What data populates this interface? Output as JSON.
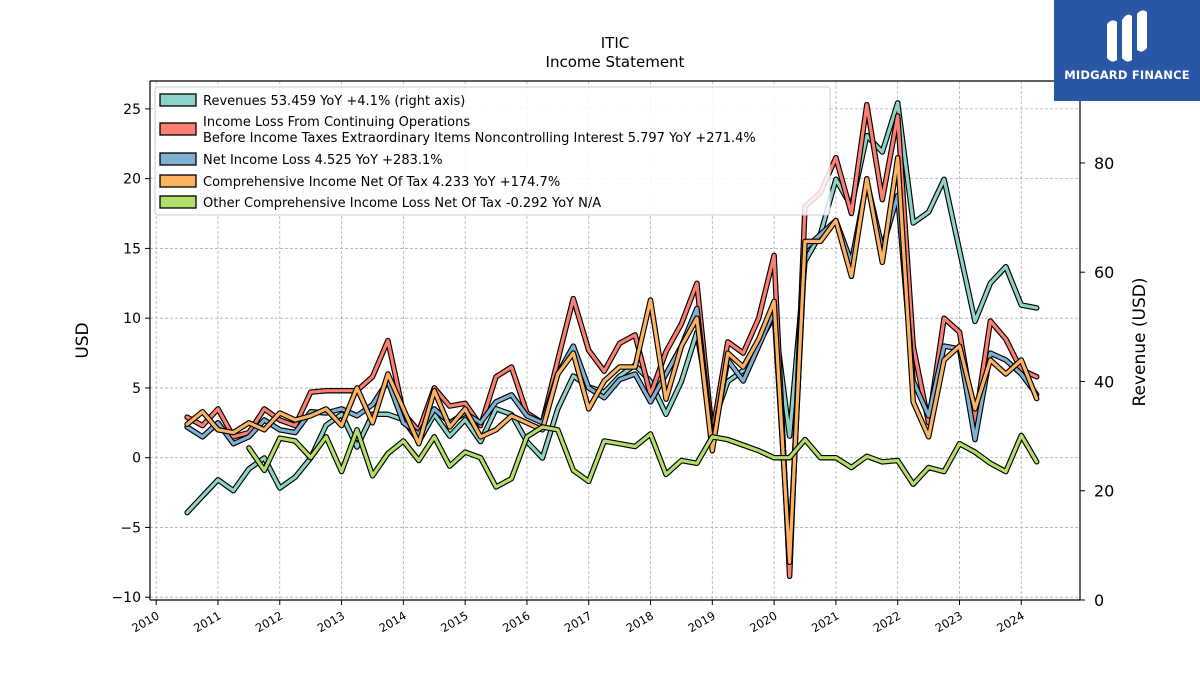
{
  "title": "ITIC",
  "subtitle": "Income Statement",
  "logo_text": "MIDGARD FINANCE",
  "chart_data": {
    "type": "line",
    "ylabel": "USD",
    "y2label": "Revenue (USD)",
    "xlim": [
      2009.9,
      2024.95
    ],
    "ylim": [
      -10.2,
      27
    ],
    "y2lim": [
      0,
      95
    ],
    "yticks": [
      -10,
      -5,
      0,
      5,
      10,
      15,
      20,
      25
    ],
    "y2ticks": [
      0,
      20,
      40,
      60,
      80
    ],
    "xticks": [
      2010,
      2011,
      2012,
      2013,
      2014,
      2015,
      2016,
      2017,
      2018,
      2019,
      2020,
      2021,
      2022,
      2023,
      2024
    ],
    "xtick_labels": [
      "2010",
      "2011",
      "2012",
      "2013",
      "2014",
      "2015",
      "2016",
      "2017",
      "2018",
      "2019",
      "2020",
      "2021",
      "2022",
      "2023",
      "2024"
    ],
    "grid": true,
    "legend_position": "top-left",
    "x": [
      2010.5,
      2010.75,
      2011.0,
      2011.25,
      2011.5,
      2011.75,
      2012.0,
      2012.25,
      2012.5,
      2012.75,
      2013.0,
      2013.25,
      2013.5,
      2013.75,
      2014.0,
      2014.25,
      2014.5,
      2014.75,
      2015.0,
      2015.25,
      2015.5,
      2015.75,
      2016.0,
      2016.25,
      2016.5,
      2016.75,
      2017.0,
      2017.25,
      2017.5,
      2017.75,
      2018.0,
      2018.25,
      2018.5,
      2018.75,
      2019.0,
      2019.25,
      2019.5,
      2019.75,
      2020.0,
      2020.25,
      2020.5,
      2020.75,
      2021.0,
      2021.25,
      2021.5,
      2021.75,
      2022.0,
      2022.25,
      2022.5,
      2022.75,
      2023.0,
      2023.25,
      2023.5,
      2023.75,
      2024.0,
      2024.25
    ],
    "series": [
      {
        "name": "Revenues",
        "legend": "Revenues  53.459 YoY +4.1% (right axis)",
        "color": "#8dd3c7",
        "axis": "right",
        "values": [
          16,
          19,
          22,
          20,
          24,
          26,
          20.5,
          22.5,
          26,
          32,
          34,
          28,
          34,
          34,
          33,
          29,
          34,
          30,
          33,
          29,
          35,
          34,
          29,
          26,
          35,
          41,
          39,
          38,
          41,
          43,
          40,
          34,
          40,
          49,
          32,
          40,
          42,
          47,
          52,
          30,
          62,
          67,
          77,
          72,
          85,
          82,
          91,
          69,
          71,
          77,
          64,
          51,
          58,
          61,
          54,
          53.459
        ]
      },
      {
        "name": "Income Loss From Continuing Operations Before Income Taxes Extraordinary Items Noncontrolling Interest",
        "legend_lines": [
          "Income Loss From Continuing Operations",
          "Before Income Taxes Extraordinary Items Noncontrolling Interest  5.797 YoY +271.4%"
        ],
        "color": "#fb8072",
        "axis": "left",
        "values": [
          2.9,
          2.3,
          3.5,
          1.5,
          1.8,
          3.5,
          2.7,
          2.3,
          4.7,
          4.8,
          4.8,
          4.8,
          5.8,
          8.4,
          3.2,
          1.9,
          5.0,
          3.7,
          3.9,
          2.3,
          5.8,
          6.5,
          3.2,
          2.5,
          7.0,
          11.4,
          7.7,
          6.2,
          8.2,
          8.8,
          4.5,
          7.6,
          9.6,
          12.5,
          1.7,
          8.3,
          7.5,
          10.0,
          14.5,
          -8.5,
          18.0,
          19.0,
          21.5,
          17.5,
          25.3,
          18.5,
          24.5,
          8.0,
          2.5,
          10.0,
          9.0,
          2.5,
          9.8,
          8.5,
          6.3,
          5.797
        ]
      },
      {
        "name": "Net Income Loss",
        "legend": "Net Income Loss  4.525 YoY +283.1%",
        "color": "#80b1d3",
        "axis": "left",
        "values": [
          2.2,
          1.5,
          2.5,
          1.0,
          1.5,
          2.7,
          2.0,
          1.8,
          3.3,
          3.2,
          3.5,
          3.0,
          3.8,
          5.5,
          2.5,
          1.7,
          3.5,
          2.5,
          3.2,
          2.5,
          4.0,
          4.5,
          3.0,
          2.5,
          6.0,
          8.0,
          5.0,
          4.3,
          5.6,
          6.0,
          4.0,
          6.0,
          8.0,
          10.7,
          1.0,
          7.0,
          5.5,
          8.0,
          10.5,
          -7.0,
          15.0,
          16.0,
          17.0,
          14.0,
          19.8,
          15.0,
          18.8,
          5.5,
          3.0,
          8.0,
          7.8,
          1.3,
          7.5,
          7.0,
          6.0,
          4.525
        ]
      },
      {
        "name": "Comprehensive Income Net Of Tax",
        "legend": "Comprehensive Income Net Of Tax  4.233 YoY +174.7%",
        "color": "#fdb462",
        "axis": "left",
        "values": [
          2.4,
          3.3,
          2.0,
          1.8,
          2.5,
          2.0,
          3.2,
          2.7,
          3.0,
          3.5,
          2.3,
          5.0,
          2.5,
          6.0,
          3.5,
          1.0,
          4.8,
          2.2,
          3.5,
          1.5,
          2.0,
          3.0,
          2.5,
          2.0,
          6.0,
          7.5,
          3.5,
          5.5,
          6.5,
          6.5,
          11.3,
          4.2,
          8.0,
          10.0,
          0.5,
          7.5,
          6.5,
          8.5,
          11.2,
          -7.5,
          15.5,
          15.5,
          17.0,
          13.0,
          20.0,
          14.0,
          21.5,
          4.0,
          1.5,
          7.0,
          8.0,
          3.5,
          7.0,
          6.0,
          7.0,
          4.233
        ]
      },
      {
        "name": "Other Comprehensive Income Loss Net Of Tax",
        "legend": "Other Comprehensive Income Loss Net Of Tax  -0.292 YoY N/A",
        "color": "#b3de69",
        "axis": "left",
        "values": [
          null,
          null,
          null,
          null,
          0.7,
          -0.9,
          1.4,
          1.2,
          0.0,
          1.5,
          -1.0,
          2.0,
          -1.3,
          0.3,
          1.2,
          -0.2,
          1.5,
          -0.6,
          0.4,
          0.0,
          -2.1,
          -1.5,
          1.5,
          2.2,
          2.0,
          -0.9,
          -1.7,
          1.2,
          1.0,
          0.8,
          1.7,
          -1.2,
          -0.2,
          -0.4,
          1.5,
          1.3,
          0.9,
          0.5,
          0.0,
          0.0,
          1.3,
          0.0,
          0.0,
          -0.7,
          0.1,
          -0.3,
          -0.2,
          -1.9,
          -0.7,
          -1.0,
          1.0,
          0.4,
          -0.4,
          -1.0,
          1.6,
          -0.292
        ]
      }
    ]
  }
}
